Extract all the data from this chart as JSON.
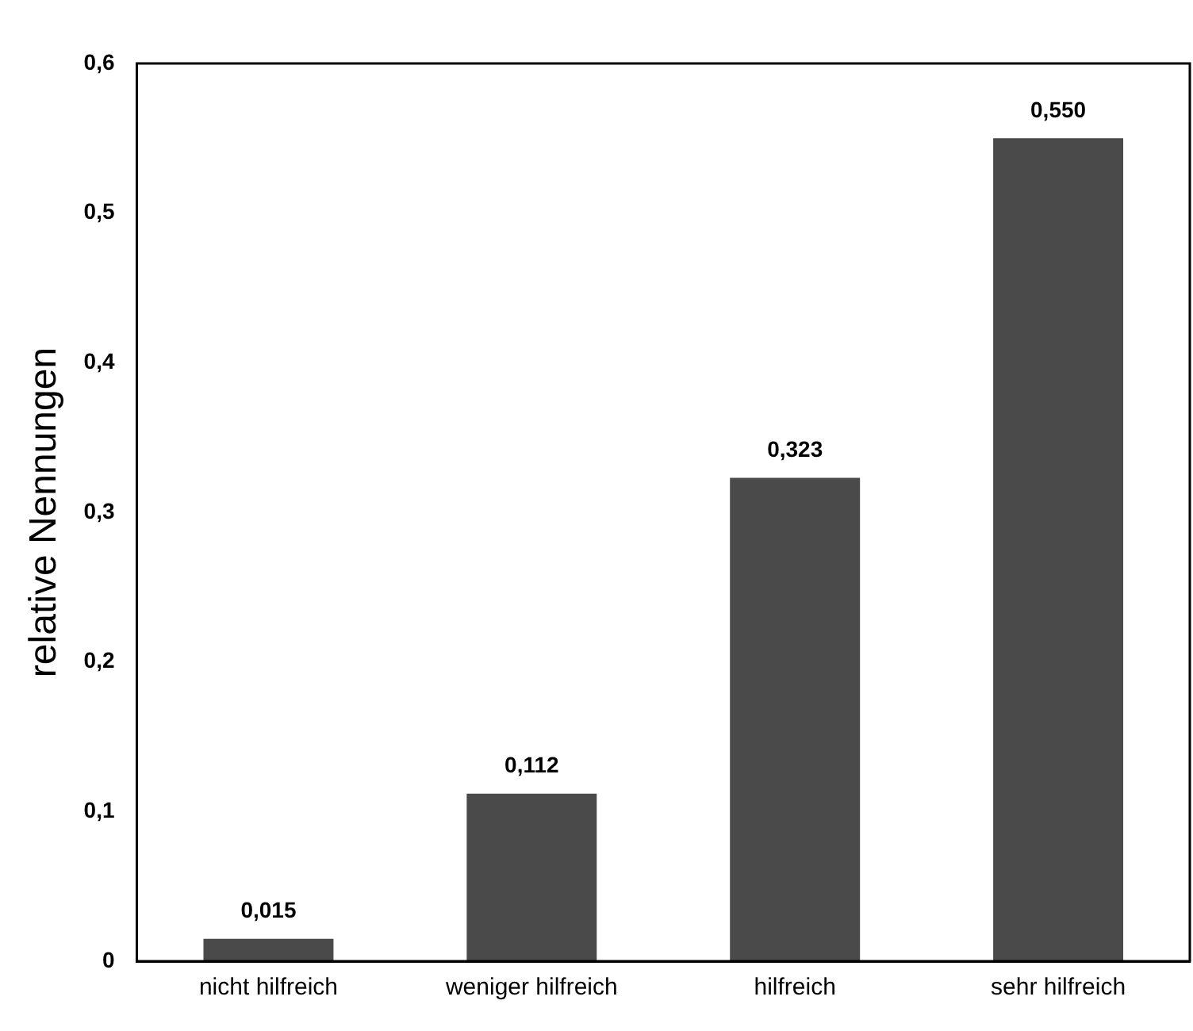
{
  "chart_data": {
    "type": "bar",
    "ylabel": "relative Nennungen",
    "categories": [
      "nicht hilfreich",
      "weniger hilfreich",
      "hilfreich",
      "sehr hilfreich"
    ],
    "values": [
      0.015,
      0.112,
      0.323,
      0.55
    ],
    "color": "#4a4a4a",
    "value_labels": [
      "0,015",
      "0,112",
      "0,323",
      "0,550"
    ],
    "ylim": [
      0,
      0.6
    ],
    "yticks": [
      0,
      {
        "value": 0.1,
        "label": "0,1"
      },
      {
        "value": 0.2,
        "label": "0,2"
      },
      {
        "value": 0.3,
        "label": "0,3"
      },
      {
        "value": 0.4,
        "label": "0,4"
      },
      {
        "value": 0.5,
        "label": "0,5"
      },
      {
        "value": 0.6,
        "label": "0,6"
      }
    ],
    "grid": false,
    "legend": false
  }
}
